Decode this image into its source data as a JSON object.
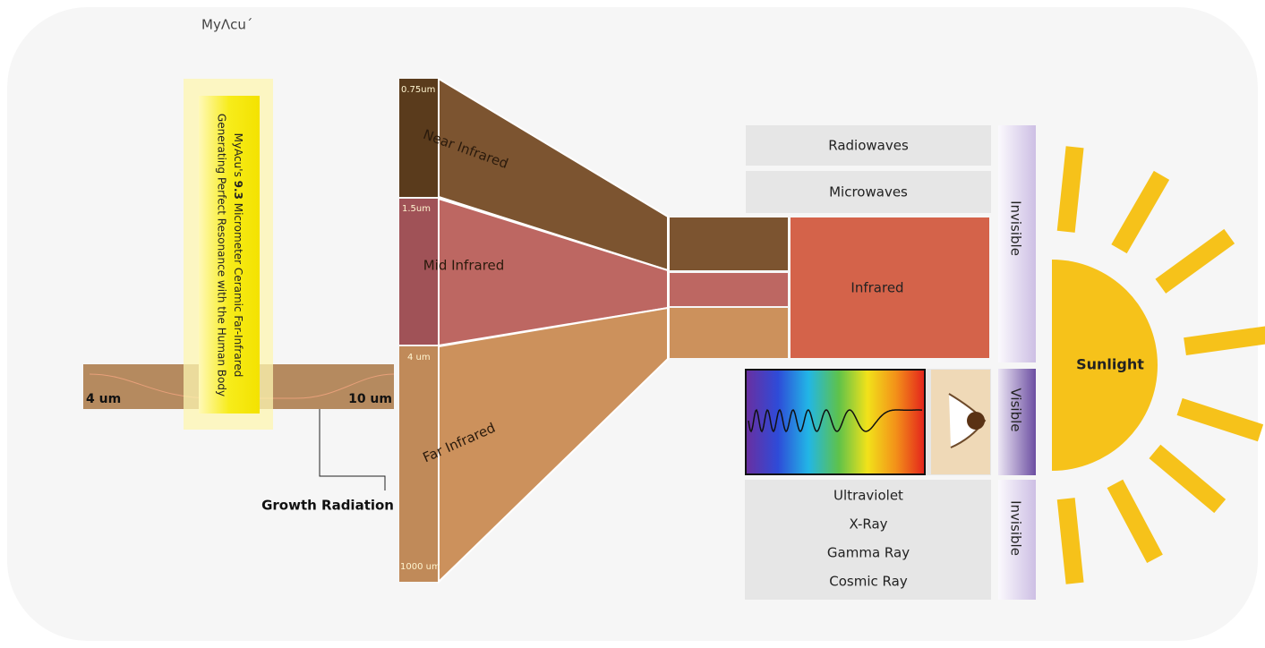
{
  "logo": "MyΛcu´",
  "resonance_note": {
    "before": "MyAcu's ",
    "highlight": "9.3",
    "after": " Micrometer Ceramic Far-Infrared",
    "line2": "Generating Perfect Resonance with the Human Body"
  },
  "growth_band": {
    "start": "4 um",
    "end": "10 um",
    "label": "Growth Radiation"
  },
  "infrared_column": {
    "bands": [
      {
        "name": "Near Infrared",
        "start": "0.75um"
      },
      {
        "name": "Mid Infrared",
        "start": "1.5um"
      },
      {
        "name": "Far Infrared",
        "start": "4 um"
      }
    ],
    "end": "1000 um"
  },
  "spectrum": {
    "radio": "Radiowaves",
    "micro": "Microwaves",
    "infrared": "Infrared",
    "high_energy": [
      "Ultraviolet",
      "X-Ray",
      "Gamma Ray",
      "Cosmic Ray"
    ],
    "visibility": [
      "Invisible",
      "Visible",
      "Invisible"
    ]
  },
  "sun": "Sunlight"
}
